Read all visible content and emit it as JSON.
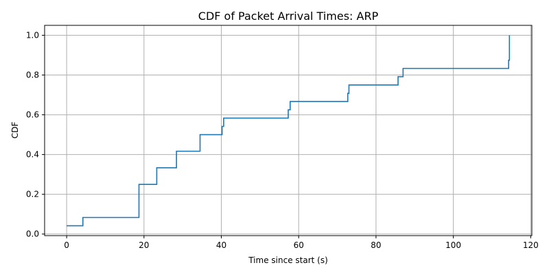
{
  "chart_data": {
    "type": "line",
    "step": "post",
    "title": "CDF of Packet Arrival Times: ARP",
    "xlabel": "Time since start (s)",
    "ylabel": "CDF",
    "xlim": [
      -5.7,
      120.3
    ],
    "ylim": [
      -0.008,
      1.05
    ],
    "xticks": [
      0,
      20,
      40,
      60,
      80,
      100,
      120
    ],
    "yticks": [
      0.0,
      0.2,
      0.4,
      0.6,
      0.8,
      1.0
    ],
    "xtick_labels": [
      "0",
      "20",
      "40",
      "60",
      "80",
      "100",
      "120"
    ],
    "ytick_labels": [
      "0.0",
      "0.2",
      "0.4",
      "0.6",
      "0.8",
      "1.0"
    ],
    "grid": true,
    "series": [
      {
        "name": "ARP",
        "color": "#1f77b4",
        "x": [
          0,
          4.2,
          18.7,
          23.3,
          28.4,
          34.5,
          40.2,
          40.6,
          57.3,
          57.8,
          72.7,
          73.0,
          85.7,
          87.0,
          114.3,
          114.5
        ],
        "y": [
          0.0417,
          0.0833,
          0.25,
          0.3333,
          0.4167,
          0.5,
          0.5417,
          0.5833,
          0.625,
          0.6667,
          0.7083,
          0.75,
          0.7917,
          0.8333,
          0.875,
          1.0
        ]
      }
    ]
  }
}
